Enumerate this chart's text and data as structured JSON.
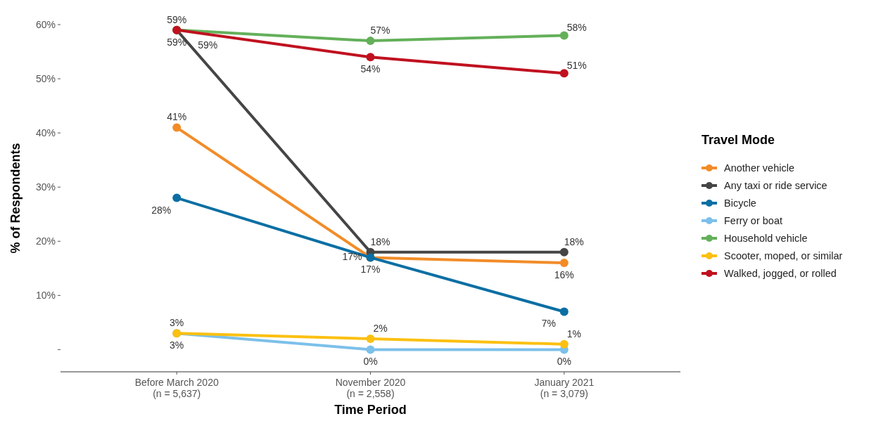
{
  "chart_data": {
    "type": "line",
    "xlabel": "Time Period",
    "ylabel": "% of Respondents",
    "legend_title": "Travel Mode",
    "legend": "right",
    "marker": "circle",
    "line_style": "solid",
    "categories": [
      "Before March 2020\n(n = 5,637)",
      "November 2020\n(n = 2,558)",
      "January 2021\n(n = 3,079)"
    ],
    "ylim": [
      -4.1,
      60
    ],
    "yticks": [
      {
        "value": 0,
        "label": null
      },
      {
        "value": 10,
        "label": "10%"
      },
      {
        "value": 20,
        "label": "20%"
      },
      {
        "value": 30,
        "label": "30%"
      },
      {
        "value": 40,
        "label": "40%"
      },
      {
        "value": 50,
        "label": "50%"
      },
      {
        "value": 60,
        "label": "60%"
      }
    ],
    "series": [
      {
        "name": "Another vehicle",
        "color": "#f28c28",
        "values": [
          41,
          17,
          16
        ],
        "value_labels": [
          "41%",
          "17%",
          "16%"
        ]
      },
      {
        "name": "Any taxi or ride service",
        "color": "#454545",
        "values": [
          59,
          18,
          18
        ],
        "value_labels": [
          "59%",
          "18%",
          "18%"
        ]
      },
      {
        "name": "Bicycle",
        "color": "#0b6fa4",
        "values": [
          28,
          17,
          7
        ],
        "value_labels": [
          "28%",
          "17%",
          "7%"
        ]
      },
      {
        "name": "Ferry or boat",
        "color": "#7cc0ea",
        "values": [
          3,
          0,
          0
        ],
        "value_labels": [
          "3%",
          "0%",
          "0%"
        ]
      },
      {
        "name": "Household vehicle",
        "color": "#64b05a",
        "values": [
          59,
          57,
          58
        ],
        "value_labels": [
          "59%",
          "57%",
          "58%"
        ]
      },
      {
        "name": "Scooter, moped, or similar",
        "color": "#fbc011",
        "values": [
          3,
          2,
          1
        ],
        "value_labels": [
          "3%",
          "2%",
          "1%"
        ]
      },
      {
        "name": "Walked, jogged, or rolled",
        "color": "#c0111f",
        "values": [
          59,
          54,
          51
        ],
        "value_labels": [
          "59%",
          "54%",
          "51%"
        ]
      }
    ]
  }
}
